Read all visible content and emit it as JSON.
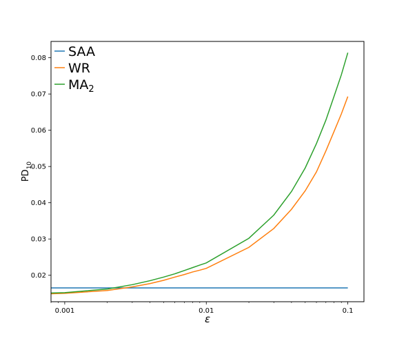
{
  "chart_data": {
    "type": "line",
    "title": "",
    "xlabel": "ε",
    "ylabel": "PD",
    "ylabel_subscript": "10",
    "x_scale": "log",
    "xlim": [
      0.0008,
      0.13
    ],
    "ylim": [
      0.0127,
      0.0845
    ],
    "x_ticks": [
      {
        "value": 0.001,
        "label": "0.001"
      },
      {
        "value": 0.01,
        "label": "0.01"
      },
      {
        "value": 0.1,
        "label": "0.1"
      }
    ],
    "y_ticks": [
      {
        "value": 0.02,
        "label": "0.02"
      },
      {
        "value": 0.03,
        "label": "0.03"
      },
      {
        "value": 0.04,
        "label": "0.04"
      },
      {
        "value": 0.05,
        "label": "0.05"
      },
      {
        "value": 0.06,
        "label": "0.06"
      },
      {
        "value": 0.07,
        "label": "0.07"
      },
      {
        "value": 0.08,
        "label": "0.08"
      }
    ],
    "grid": false,
    "legend_position": "top-left",
    "series": [
      {
        "name": "SAA",
        "name_subscript": "",
        "color": "#1f77b4",
        "points": [
          [
            0.0008,
            0.0165
          ],
          [
            0.1,
            0.0165
          ]
        ]
      },
      {
        "name": "WR",
        "name_subscript": "",
        "color": "#ff7f0e",
        "points": [
          [
            0.0008,
            0.0149
          ],
          [
            0.001,
            0.015
          ],
          [
            0.002,
            0.0158
          ],
          [
            0.003,
            0.0168
          ],
          [
            0.004,
            0.0177
          ],
          [
            0.005,
            0.0186
          ],
          [
            0.006,
            0.0195
          ],
          [
            0.007,
            0.0202
          ],
          [
            0.008,
            0.0209
          ],
          [
            0.009,
            0.0214
          ],
          [
            0.01,
            0.0219
          ],
          [
            0.02,
            0.0277
          ],
          [
            0.03,
            0.0329
          ],
          [
            0.04,
            0.0382
          ],
          [
            0.05,
            0.0433
          ],
          [
            0.06,
            0.0485
          ],
          [
            0.07,
            0.0543
          ],
          [
            0.08,
            0.0597
          ],
          [
            0.09,
            0.0645
          ],
          [
            0.1,
            0.0693
          ]
        ]
      },
      {
        "name": "MA",
        "name_subscript": "2",
        "color": "#2ca02c",
        "points": [
          [
            0.0008,
            0.0151
          ],
          [
            0.001,
            0.0152
          ],
          [
            0.002,
            0.0162
          ],
          [
            0.003,
            0.0174
          ],
          [
            0.004,
            0.0185
          ],
          [
            0.005,
            0.0195
          ],
          [
            0.006,
            0.0204
          ],
          [
            0.007,
            0.0213
          ],
          [
            0.008,
            0.0221
          ],
          [
            0.009,
            0.0228
          ],
          [
            0.01,
            0.0234
          ],
          [
            0.02,
            0.0302
          ],
          [
            0.03,
            0.0366
          ],
          [
            0.04,
            0.0431
          ],
          [
            0.05,
            0.0496
          ],
          [
            0.06,
            0.0563
          ],
          [
            0.07,
            0.0628
          ],
          [
            0.08,
            0.0694
          ],
          [
            0.09,
            0.0753
          ],
          [
            0.1,
            0.0814
          ]
        ]
      }
    ]
  }
}
